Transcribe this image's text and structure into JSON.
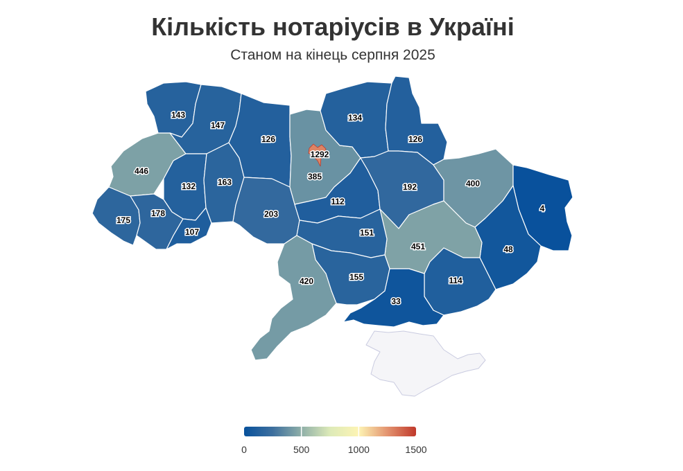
{
  "title": "Кількість нотаріусів в Україні",
  "subtitle": "Станом на кінець серпня 2025",
  "map_data": {
    "type": "choropleth",
    "regions": [
      {
        "id": "volyn",
        "value": 143
      },
      {
        "id": "rivne",
        "value": 147
      },
      {
        "id": "zhytomyr",
        "value": 126
      },
      {
        "id": "kyiv-city",
        "value": 1292
      },
      {
        "id": "kyiv-oblast",
        "value": 385
      },
      {
        "id": "chernihiv",
        "value": 134
      },
      {
        "id": "sumy",
        "value": 126
      },
      {
        "id": "lviv",
        "value": 446
      },
      {
        "id": "ternopil",
        "value": 132
      },
      {
        "id": "khmelnytskyi",
        "value": 163
      },
      {
        "id": "kharkiv",
        "value": 400
      },
      {
        "id": "poltava",
        "value": 192
      },
      {
        "id": "ivano-frankivsk",
        "value": 178
      },
      {
        "id": "zakarpattia",
        "value": 175
      },
      {
        "id": "chernivtsi",
        "value": 107
      },
      {
        "id": "vinnytsia",
        "value": 203
      },
      {
        "id": "cherkasy",
        "value": 112
      },
      {
        "id": "kirovohrad",
        "value": 151
      },
      {
        "id": "luhansk",
        "value": 4
      },
      {
        "id": "donetsk",
        "value": 48
      },
      {
        "id": "dnipropetrovsk",
        "value": 451
      },
      {
        "id": "zaporizhzhia",
        "value": 114
      },
      {
        "id": "odesa",
        "value": 420
      },
      {
        "id": "mykolaiv",
        "value": 155
      },
      {
        "id": "kherson",
        "value": 33
      },
      {
        "id": "crimea",
        "value": null
      }
    ],
    "color_scale": {
      "min": 0,
      "max": 1500,
      "stops": [
        {
          "value": 0,
          "color": "#08519c"
        },
        {
          "value": 250,
          "color": "#3d6f9e"
        },
        {
          "value": 500,
          "color": "#8fafa8"
        },
        {
          "value": 750,
          "color": "#ddeab8"
        },
        {
          "value": 1000,
          "color": "#fdf4b4"
        },
        {
          "value": 1250,
          "color": "#e3936f"
        },
        {
          "value": 1500,
          "color": "#c0392b"
        }
      ],
      "ticks": [
        0,
        500,
        1000,
        1500
      ]
    },
    "no_data_color": "#f5f5f8"
  }
}
